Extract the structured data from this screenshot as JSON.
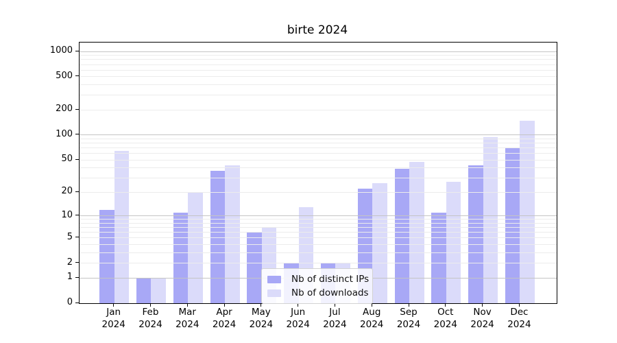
{
  "chart_data": {
    "type": "bar",
    "title": "birte 2024",
    "categories": [
      "Jan",
      "Feb",
      "Mar",
      "Apr",
      "May",
      "Jun",
      "Jul",
      "Aug",
      "Sep",
      "Oct",
      "Nov",
      "Dec"
    ],
    "category_sublabel": "2024",
    "series": [
      {
        "name": "Nb of distinct IPs",
        "color": "#a8a8f6",
        "values": [
          12,
          1,
          11,
          37,
          6,
          2,
          2,
          22,
          39,
          11,
          43,
          70
        ]
      },
      {
        "name": "Nb of downloads",
        "color": "#dbdbfa",
        "values": [
          65,
          1,
          20,
          43,
          7,
          13,
          2,
          26,
          47,
          27,
          94,
          150
        ]
      }
    ],
    "yscale": "symlog",
    "yticks": [
      0,
      1,
      2,
      5,
      10,
      20,
      50,
      100,
      200,
      500,
      1000
    ],
    "ylim": [
      0,
      1280
    ],
    "grid_major": [
      1,
      10,
      100,
      1000
    ],
    "grid_minor_decades": [
      1,
      10,
      100
    ],
    "grid": "on",
    "legend_position": "lower center",
    "xlabel": "",
    "ylabel": ""
  },
  "colors": {
    "axis": "#000000",
    "grid_major": "#c4c4c4",
    "grid_minor": "#ececec",
    "background": "#ffffff"
  }
}
